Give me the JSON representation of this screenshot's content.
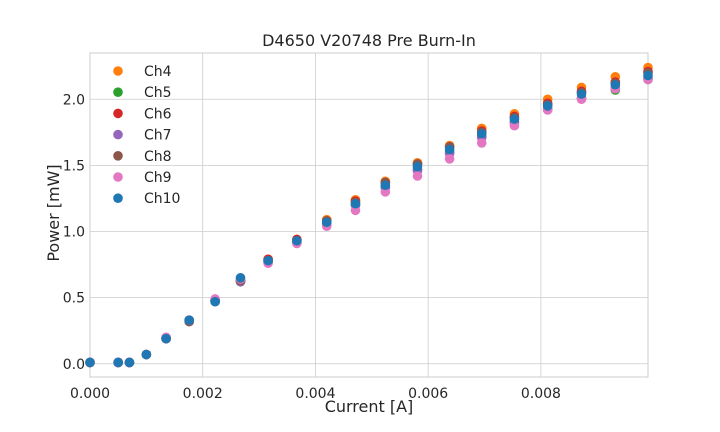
{
  "chart_data": {
    "type": "scatter",
    "title": "D4650 V20748 Pre Burn-In",
    "xlabel": "Current [A]",
    "ylabel": "Power [mW]",
    "xlim": [
      0,
      0.0099
    ],
    "ylim": [
      -0.1,
      2.35
    ],
    "xticks": [
      0,
      0.002,
      0.004,
      0.006,
      0.008
    ],
    "xtick_labels": [
      "0.000",
      "0.002",
      "0.004",
      "0.006",
      "0.008"
    ],
    "yticks": [
      0,
      0.5,
      1.0,
      1.5,
      2.0
    ],
    "ytick_labels": [
      "0.0",
      "0.5",
      "1.0",
      "1.5",
      "2.0"
    ],
    "grid": true,
    "legend_position": "top-left",
    "x": [
      0,
      0.0005,
      0.0007,
      0.001,
      0.00135,
      0.00176,
      0.00222,
      0.00267,
      0.00316,
      0.00367,
      0.0042,
      0.00471,
      0.00524,
      0.00581,
      0.00638,
      0.00695,
      0.00753,
      0.00812,
      0.00872,
      0.00932,
      0.0099
    ],
    "series": [
      {
        "name": "Ch4",
        "color": "#ff7f0e",
        "values": [
          0.01,
          0.01,
          0.01,
          0.07,
          0.19,
          0.33,
          0.48,
          0.63,
          0.79,
          0.94,
          1.09,
          1.24,
          1.38,
          1.52,
          1.65,
          1.78,
          1.89,
          2.0,
          2.09,
          2.17,
          2.24
        ]
      },
      {
        "name": "Ch5",
        "color": "#2ca02c",
        "values": [
          0.01,
          0.01,
          0.01,
          0.07,
          0.19,
          0.32,
          0.47,
          0.62,
          0.77,
          0.92,
          1.06,
          1.2,
          1.34,
          1.47,
          1.6,
          1.72,
          1.83,
          1.93,
          2.01,
          2.07,
          2.15
        ]
      },
      {
        "name": "Ch6",
        "color": "#d62728",
        "values": [
          0.01,
          0.01,
          0.01,
          0.07,
          0.19,
          0.33,
          0.48,
          0.63,
          0.79,
          0.94,
          1.08,
          1.23,
          1.37,
          1.51,
          1.64,
          1.76,
          1.87,
          1.97,
          2.06,
          2.13,
          2.21
        ]
      },
      {
        "name": "Ch7",
        "color": "#9467bd",
        "values": [
          0.01,
          0.01,
          0.01,
          0.07,
          0.19,
          0.32,
          0.47,
          0.62,
          0.77,
          0.92,
          1.06,
          1.2,
          1.33,
          1.46,
          1.59,
          1.71,
          1.82,
          1.92,
          2.01,
          2.09,
          2.16
        ]
      },
      {
        "name": "Ch8",
        "color": "#8c564b",
        "values": [
          0.01,
          0.01,
          0.01,
          0.07,
          0.19,
          0.32,
          0.48,
          0.63,
          0.78,
          0.93,
          1.08,
          1.22,
          1.37,
          1.51,
          1.64,
          1.75,
          1.86,
          1.96,
          2.05,
          2.12,
          2.2
        ]
      },
      {
        "name": "Ch9",
        "color": "#e377c2",
        "values": [
          0.01,
          0.01,
          0.01,
          0.07,
          0.2,
          0.33,
          0.49,
          0.64,
          0.76,
          0.91,
          1.04,
          1.16,
          1.3,
          1.42,
          1.55,
          1.67,
          1.8,
          1.92,
          2.0,
          2.08,
          2.15
        ]
      },
      {
        "name": "Ch10",
        "color": "#1f77b4",
        "values": [
          0.01,
          0.01,
          0.01,
          0.07,
          0.19,
          0.33,
          0.47,
          0.65,
          0.78,
          0.93,
          1.07,
          1.21,
          1.35,
          1.49,
          1.62,
          1.74,
          1.85,
          1.95,
          2.04,
          2.11,
          2.18
        ]
      }
    ]
  }
}
